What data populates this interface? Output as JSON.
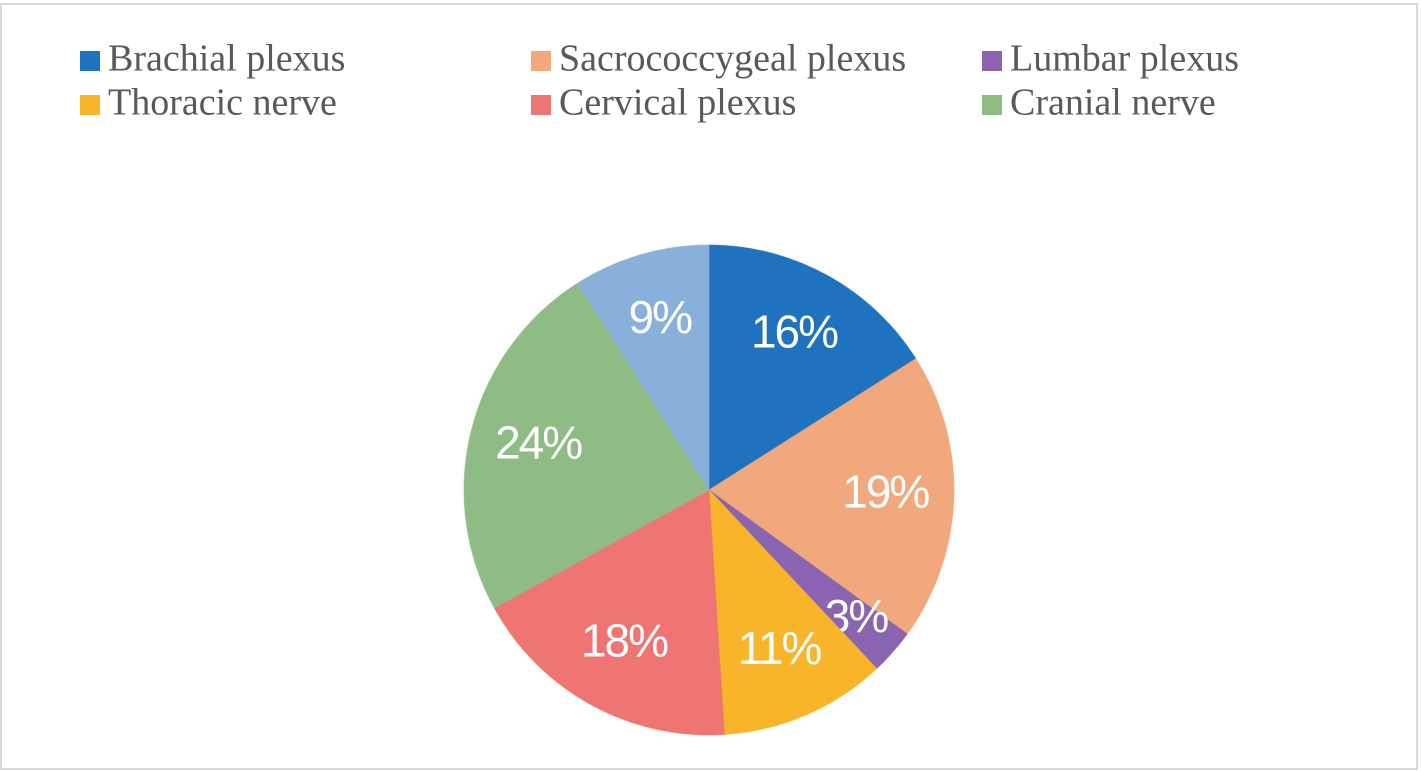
{
  "chart_data": {
    "type": "pie",
    "categories": [
      "Brachial plexus",
      "Sacrococcygeal plexus",
      "Lumbar plexus",
      "Thoracic nerve",
      "Cervical plexus",
      "Cranial nerve",
      null
    ],
    "values": [
      16,
      19,
      3,
      11,
      18,
      24,
      9
    ],
    "value_labels": [
      "16%",
      "19%",
      "3%",
      "11%",
      "18%",
      "24%",
      "9%"
    ],
    "colors": [
      "#1f72be",
      "#f0a87c",
      "#8a64b0",
      "#f8b52a",
      "#ee7572",
      "#8fbb85",
      "#88b0db"
    ]
  }
}
